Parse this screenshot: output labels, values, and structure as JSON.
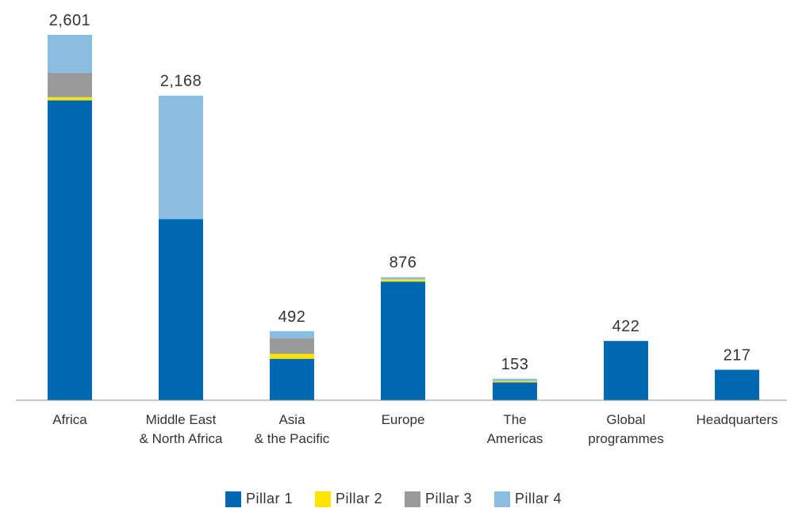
{
  "colors": {
    "pillar1": "#0068b3",
    "pillar2": "#ffe600",
    "pillar3": "#9a9a9a",
    "pillar4": "#89bde2",
    "axis": "#8c8c8c",
    "text": "#333333"
  },
  "chart_data": {
    "type": "bar",
    "stacked": true,
    "categories": [
      [
        "Africa"
      ],
      [
        "Middle East",
        "& North Africa"
      ],
      [
        "Asia",
        "& the Pacific"
      ],
      [
        "Europe"
      ],
      [
        "The",
        "Americas"
      ],
      [
        "Global",
        "programmes"
      ],
      [
        "Headquarters"
      ]
    ],
    "totals": [
      "2,601",
      "2,168",
      "492",
      "876",
      "153",
      "422",
      "217"
    ],
    "series": [
      {
        "name": "Pillar 1",
        "color_key": "pillar1",
        "values": [
          2135,
          1290,
          295,
          845,
          127,
          422,
          217
        ]
      },
      {
        "name": "Pillar 2",
        "color_key": "pillar2",
        "values": [
          22,
          0,
          35,
          15,
          10,
          0,
          0
        ]
      },
      {
        "name": "Pillar 3",
        "color_key": "pillar3",
        "values": [
          174,
          0,
          112,
          0,
          0,
          0,
          0
        ]
      },
      {
        "name": "Pillar 4",
        "color_key": "pillar4",
        "values": [
          270,
          878,
          50,
          16,
          16,
          0,
          0
        ]
      }
    ],
    "ylim": [
      0,
      2601
    ],
    "grid": false,
    "legend_position": "bottom"
  }
}
